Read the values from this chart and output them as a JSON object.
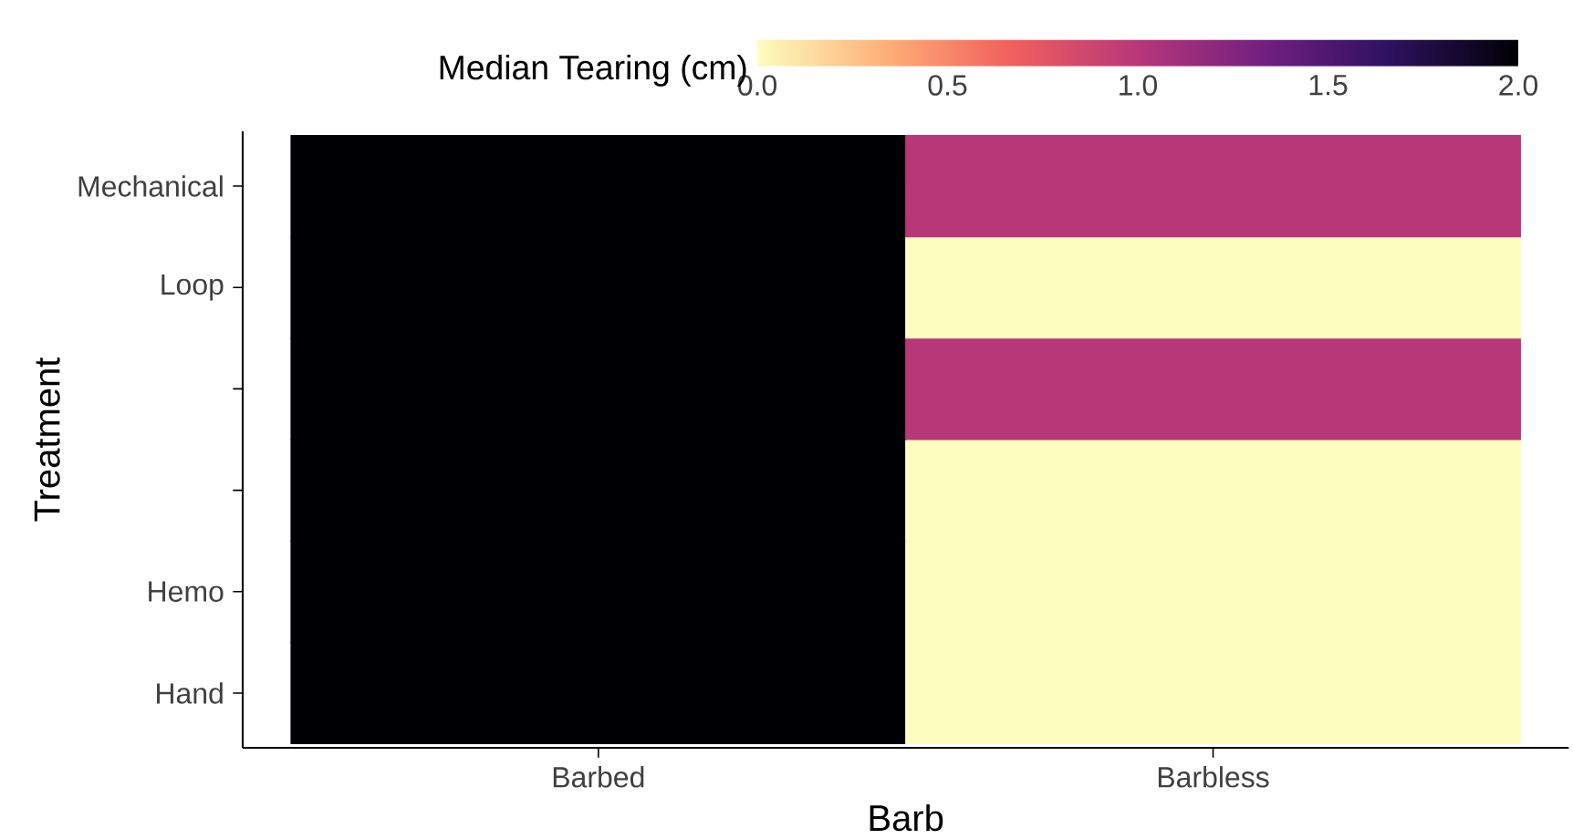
{
  "chart_data": {
    "type": "heatmap",
    "xlabel": "Barb",
    "ylabel": "Treatment",
    "clabel": "Median Tearing (cm)",
    "categories": [
      "Barbed",
      "Barbless"
    ],
    "y_categories": [
      "Mechanical",
      "Loop",
      null,
      null,
      "Hemo",
      "Hand"
    ],
    "cells": [
      [
        2.0,
        1.0
      ],
      [
        2.0,
        0.0
      ],
      [
        2.0,
        1.0
      ],
      [
        2.0,
        0.0
      ],
      [
        2.0,
        0.0
      ],
      [
        2.0,
        0.0
      ]
    ],
    "clim": [
      0.0,
      2.0
    ],
    "cticks": [
      {
        "value": 0,
        "label": "0.0"
      },
      {
        "value": 0.5,
        "label": "0.5"
      },
      {
        "value": 1,
        "label": "1.0"
      },
      {
        "value": 1.5,
        "label": "1.5"
      },
      {
        "value": 2,
        "label": "2.0"
      }
    ],
    "grid": false
  }
}
